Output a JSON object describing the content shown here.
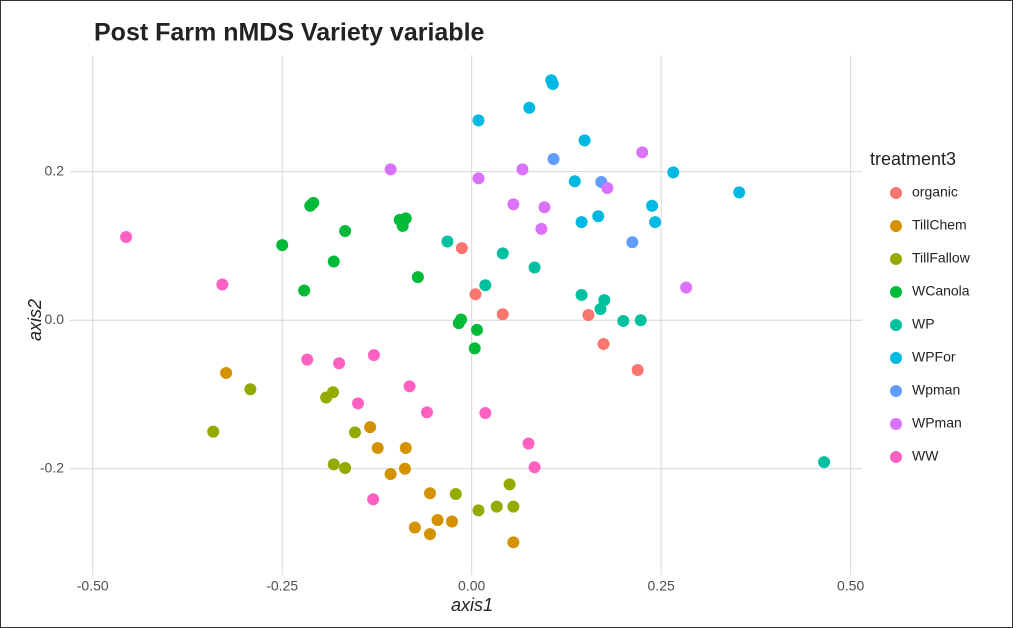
{
  "chart_data": {
    "type": "scatter",
    "title": "Post Farm nMDS Variety variable",
    "x_label": "axis1",
    "y_label": "axis2",
    "legend_title": "treatment3",
    "legend_position": "right",
    "grid": true,
    "xlim": [
      -0.53,
      0.515
    ],
    "ylim": [
      -0.343,
      0.357
    ],
    "xticks": [
      {
        "value": -0.5,
        "label": "-0.50"
      },
      -0.25,
      {
        "value": 0,
        "label": "0.00"
      },
      0.25,
      {
        "value": 0.5,
        "label": "0.50"
      }
    ],
    "yticks": [
      -0.2,
      {
        "value": 0,
        "label": "0.0"
      },
      0.2
    ],
    "series": [
      {
        "name": "organic",
        "color": "#F8766D",
        "x": [
          -0.013,
          0.005,
          0.041,
          0.154,
          0.174,
          0.219
        ],
        "y": [
          0.097,
          0.035,
          0.008,
          0.007,
          -0.032,
          -0.067
        ]
      },
      {
        "name": "TillChem",
        "color": "#D39200",
        "x": [
          -0.324,
          -0.134,
          -0.124,
          -0.087,
          -0.088,
          -0.107,
          -0.055,
          -0.026,
          -0.045,
          -0.075,
          -0.055,
          0.055
        ],
        "y": [
          -0.071,
          -0.144,
          -0.172,
          -0.172,
          -0.2,
          -0.207,
          -0.233,
          -0.271,
          -0.269,
          -0.279,
          -0.288,
          -0.299
        ]
      },
      {
        "name": "TillFallow",
        "color": "#93AA00",
        "x": [
          -0.292,
          -0.341,
          -0.192,
          -0.183,
          -0.154,
          -0.182,
          -0.167,
          -0.021,
          0.05,
          0.033,
          0.055,
          0.009
        ],
        "y": [
          -0.093,
          -0.15,
          -0.104,
          -0.097,
          -0.151,
          -0.194,
          -0.199,
          -0.234,
          -0.221,
          -0.251,
          -0.251,
          -0.256
        ]
      },
      {
        "name": "WCanola",
        "color": "#00BA38",
        "x": [
          -0.25,
          -0.209,
          -0.213,
          -0.167,
          -0.182,
          -0.221,
          -0.095,
          -0.087,
          -0.091,
          -0.071,
          -0.017,
          -0.014,
          0.007,
          0.004
        ],
        "y": [
          0.101,
          0.158,
          0.154,
          0.12,
          0.079,
          0.04,
          0.135,
          0.137,
          0.127,
          0.058,
          -0.004,
          0.001,
          -0.013,
          -0.038
        ]
      },
      {
        "name": "WP",
        "color": "#00C19F",
        "x": [
          -0.032,
          0.018,
          0.041,
          0.083,
          0.145,
          0.17,
          0.175,
          0.2,
          0.223,
          0.465
        ],
        "y": [
          0.106,
          0.047,
          0.09,
          0.071,
          0.034,
          0.015,
          0.027,
          -0.001,
          0.0,
          -0.191
        ]
      },
      {
        "name": "WPFor",
        "color": "#00B9E3",
        "x": [
          0.105,
          0.107,
          0.076,
          0.009,
          0.149,
          0.136,
          0.145,
          0.167,
          0.238,
          0.242,
          0.266,
          0.353
        ],
        "y": [
          0.323,
          0.318,
          0.286,
          0.269,
          0.242,
          0.187,
          0.132,
          0.14,
          0.154,
          0.132,
          0.199,
          0.172
        ]
      },
      {
        "name": "Wpman",
        "color": "#619CFF",
        "x": [
          0.108,
          0.171,
          0.212
        ],
        "y": [
          0.217,
          0.186,
          0.105
        ]
      },
      {
        "name": "WPman",
        "color": "#DB72FB",
        "x": [
          -0.107,
          0.009,
          0.067,
          0.179,
          0.225,
          0.055,
          0.096,
          0.092,
          0.283
        ],
        "y": [
          0.203,
          0.191,
          0.203,
          0.178,
          0.226,
          0.156,
          0.152,
          0.123,
          0.044
        ]
      },
      {
        "name": "WW",
        "color": "#FF61C3",
        "x": [
          -0.456,
          -0.329,
          -0.217,
          -0.175,
          -0.129,
          -0.15,
          -0.082,
          -0.059,
          -0.13,
          0.018,
          0.075,
          0.083
        ],
        "y": [
          0.112,
          0.048,
          -0.053,
          -0.058,
          -0.047,
          -0.112,
          -0.089,
          -0.124,
          -0.241,
          -0.125,
          -0.166,
          -0.198
        ]
      }
    ]
  }
}
